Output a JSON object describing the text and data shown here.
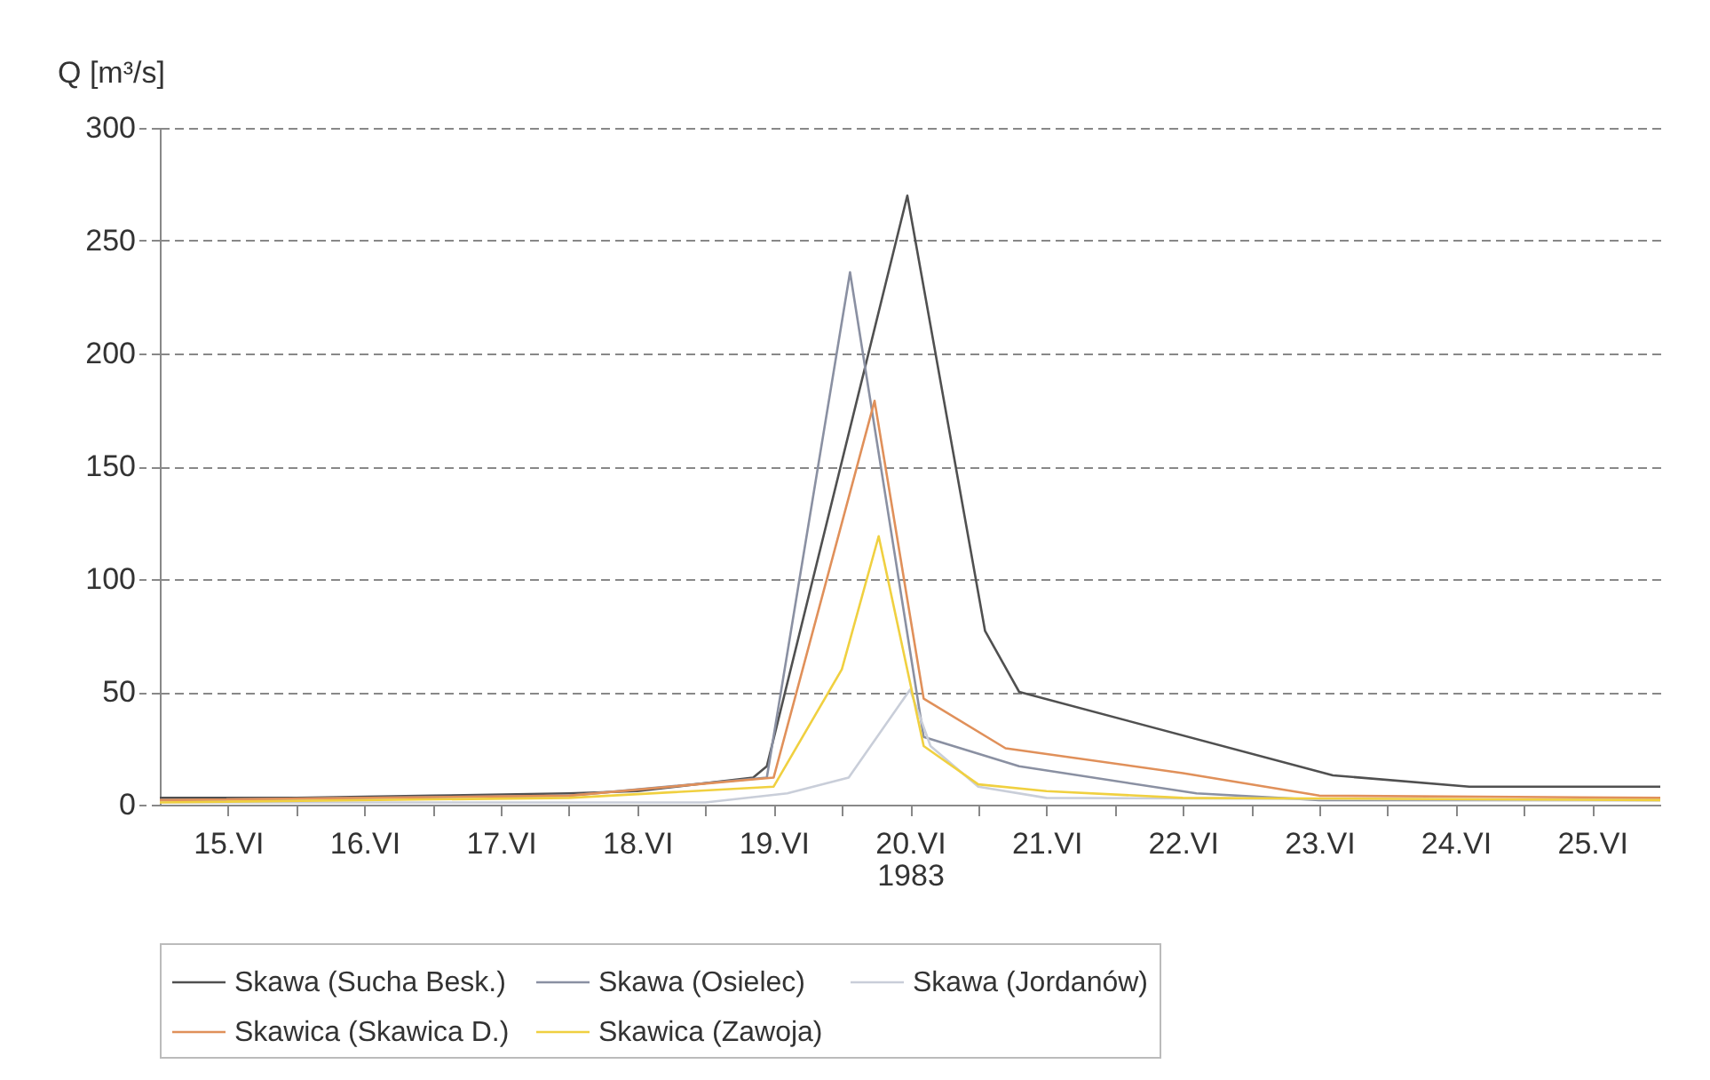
{
  "chart_data": {
    "type": "line",
    "ylabel": "Q [m³/s]",
    "xlabel": "1983",
    "xlim": [
      15,
      26
    ],
    "ylim": [
      0,
      300
    ],
    "yticks": [
      0,
      50,
      100,
      150,
      200,
      250,
      300
    ],
    "xticks": [
      {
        "value": 16,
        "label": null
      },
      {
        "value": 17,
        "label": null
      },
      {
        "value": 18,
        "label": null
      },
      {
        "value": 19,
        "label": null
      },
      {
        "value": 20,
        "label": null
      },
      {
        "value": 21,
        "label": null
      },
      {
        "value": 22,
        "label": null
      },
      {
        "value": 23,
        "label": null
      },
      {
        "value": 24,
        "label": null
      },
      {
        "value": 25,
        "label": null
      },
      {
        "value": 15.5,
        "label": "15.VI"
      },
      {
        "value": 16.5,
        "label": "16.VI"
      },
      {
        "value": 17.5,
        "label": "17.VI"
      },
      {
        "value": 18.5,
        "label": "18.VI"
      },
      {
        "value": 19.5,
        "label": "19.VI"
      },
      {
        "value": 20.5,
        "label": "20.VI"
      },
      {
        "value": 21.5,
        "label": "21.VI"
      },
      {
        "value": 22.5,
        "label": "22.VI"
      },
      {
        "value": 23.5,
        "label": "23.VI"
      },
      {
        "value": 24.5,
        "label": "24.VI"
      },
      {
        "value": 25.5,
        "label": "25.VI"
      }
    ],
    "grid": "y",
    "legend": "bottom",
    "marker": "none",
    "line_style": "solid",
    "series": [
      {
        "name": "Skawa (Sucha Besk.)",
        "color": "#505050",
        "x": [
          15,
          16,
          17,
          18,
          18.5,
          19.35,
          19.45,
          20.48,
          21.05,
          21.3,
          23.6,
          24.6,
          26
        ],
        "values": [
          3,
          3,
          4,
          5,
          6,
          12,
          17,
          270,
          77,
          50,
          13,
          8,
          8
        ]
      },
      {
        "name": "Skawa (Osielec)",
        "color": "#8a90a2",
        "x": [
          15,
          18,
          19.45,
          20.06,
          20.6,
          21.3,
          22.6,
          23.5,
          26
        ],
        "values": [
          2,
          4,
          12,
          236,
          30,
          17,
          5,
          2,
          2
        ]
      },
      {
        "name": "Skawa (Jordanów)",
        "color": "#c9ced9",
        "x": [
          15,
          19,
          19.6,
          20.05,
          20.5,
          20.65,
          21,
          21.5,
          26
        ],
        "values": [
          1,
          1,
          5,
          12,
          51,
          26,
          8,
          3,
          2
        ]
      },
      {
        "name": "Skawica (Skawica D.)",
        "color": "#e0905a",
        "x": [
          15,
          18,
          19.5,
          20.24,
          20.6,
          21.2,
          22.5,
          23.5,
          26
        ],
        "values": [
          2,
          4,
          12,
          179,
          47,
          25,
          14,
          4,
          3
        ]
      },
      {
        "name": "Skawica (Zawoja)",
        "color": "#f0d040",
        "x": [
          15,
          18,
          19.5,
          20,
          20.27,
          20.6,
          21,
          21.5,
          22.5,
          26
        ],
        "values": [
          1,
          3,
          8,
          60,
          119,
          26,
          9,
          6,
          3,
          2
        ]
      }
    ]
  }
}
